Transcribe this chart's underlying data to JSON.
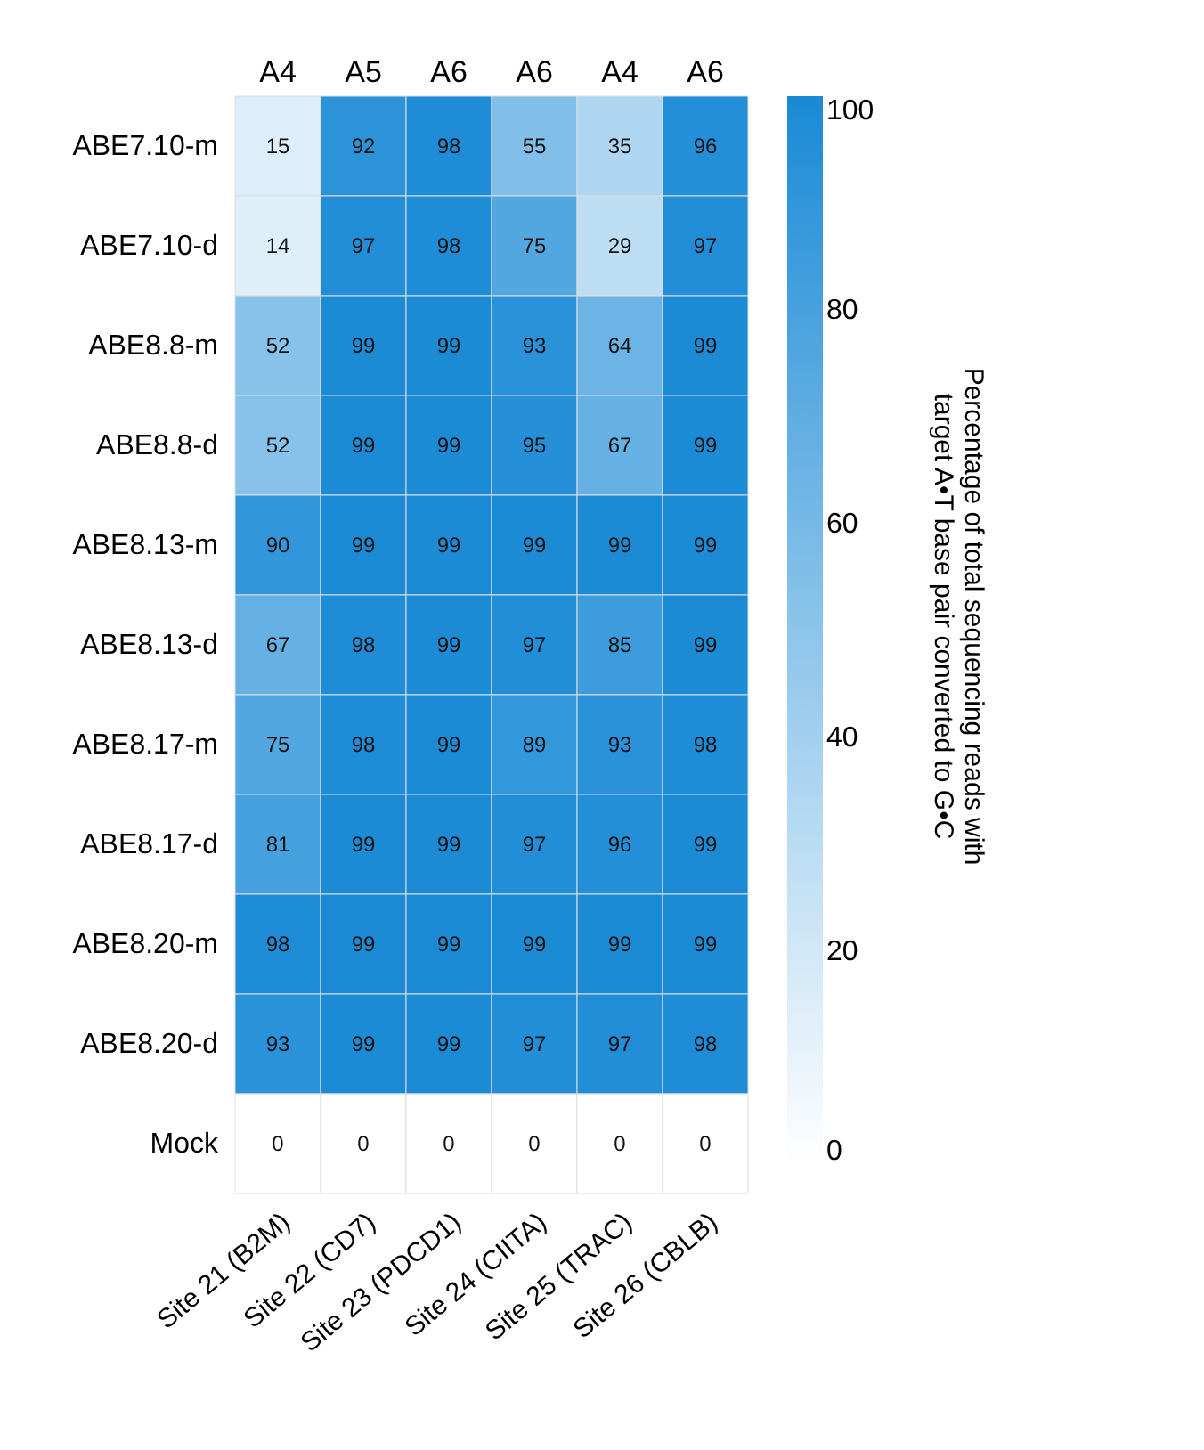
{
  "chart_data": {
    "type": "heatmap",
    "categories": [
      "Site 21 (B2M)",
      "Site 22 (CD7)",
      "Site 23 (PDCD1)",
      "Site 24 (CIITA)",
      "Site 25 (TRAC)",
      "Site 26 (CBLB)"
    ],
    "y_categories": [
      "ABE7.10-m",
      "ABE7.10-d",
      "ABE8.8-m",
      "ABE8.8-d",
      "ABE8.13-m",
      "ABE8.13-d",
      "ABE8.17-m",
      "ABE8.17-d",
      "ABE8.20-m",
      "ABE8.20-d",
      "Mock"
    ],
    "cells": [
      [
        15,
        92,
        98,
        55,
        35,
        96
      ],
      [
        14,
        97,
        98,
        75,
        29,
        97
      ],
      [
        52,
        99,
        99,
        93,
        64,
        99
      ],
      [
        52,
        99,
        99,
        95,
        67,
        99
      ],
      [
        90,
        99,
        99,
        99,
        99,
        99
      ],
      [
        67,
        98,
        99,
        97,
        85,
        99
      ],
      [
        75,
        98,
        99,
        89,
        93,
        98
      ],
      [
        81,
        99,
        99,
        97,
        96,
        99
      ],
      [
        98,
        99,
        99,
        99,
        99,
        99
      ],
      [
        93,
        99,
        99,
        97,
        97,
        98
      ],
      [
        0,
        0,
        0,
        0,
        0,
        0
      ]
    ],
    "clim": [
      0,
      100
    ],
    "cticks": [
      0,
      20,
      40,
      60,
      80,
      100
    ],
    "clabel": "Percentage of total sequencing reads with target A•T base pair converted to G•C",
    "data_labels": true,
    "annotations": [
      "A4",
      "A5",
      "A6",
      "A6",
      "A4",
      "A6"
    ]
  }
}
